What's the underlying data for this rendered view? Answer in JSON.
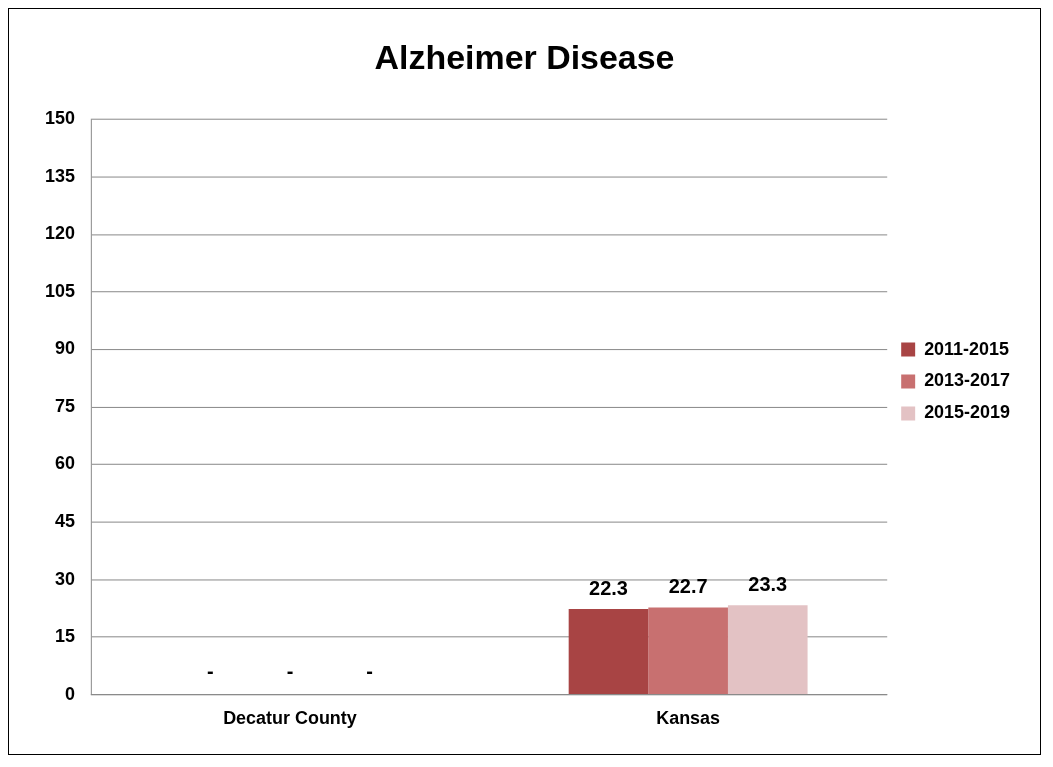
{
  "chart_data": {
    "type": "bar",
    "title": "Alzheimer Disease",
    "categories": [
      "Decatur County",
      "Kansas"
    ],
    "series": [
      {
        "name": "2011-2015",
        "color": "#a84444",
        "values": [
          null,
          22.3
        ],
        "value_labels": [
          "-",
          "22.3"
        ]
      },
      {
        "name": "2013-2017",
        "color": "#c87070",
        "values": [
          null,
          22.7
        ],
        "value_labels": [
          "-",
          "22.7"
        ]
      },
      {
        "name": "2015-2019",
        "color": "#e3c2c4",
        "values": [
          null,
          23.3
        ],
        "value_labels": [
          "-",
          "23.3"
        ]
      }
    ],
    "ylim": [
      0,
      150
    ],
    "yticks": [
      0,
      15,
      30,
      45,
      60,
      75,
      90,
      105,
      120,
      135,
      150
    ],
    "grid": "y",
    "legend": "right"
  }
}
